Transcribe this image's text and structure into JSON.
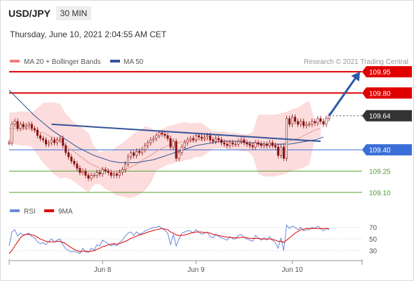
{
  "header": {
    "symbol": "USD/JPY",
    "timeframe": "30 MIN",
    "datetime": "Thursday, June 10, 2021 2:04:55 AM CET"
  },
  "legend": {
    "ma20": "MA 20 + Bollinger Bands",
    "ma50": "MA 50",
    "credit": "Research © 2021 Trading Central",
    "rsi": "RSI",
    "rsi_ma": "9MA"
  },
  "colors": {
    "candle": "#8b1010",
    "bollinger_fill": "#fbd0d0",
    "ma20": "#e89a9a",
    "ma50": "#33549a",
    "resistance": "#e00000",
    "support": "#3a6fd8",
    "target": "#55a030",
    "trendline": "#33549a",
    "arrow": "#2e5aa8",
    "rsi": "#6c8ad8",
    "rsi_ma": "#e00000"
  },
  "chart_data": [
    {
      "type": "candlestick",
      "title": "USD/JPY 30 MIN",
      "x_ticks": [
        "Jun 8",
        "Jun 9",
        "Jun 10"
      ],
      "ylim": [
        109.05,
        109.98
      ],
      "price_levels": [
        {
          "value": 109.95,
          "label": "109.95",
          "kind": "resistance"
        },
        {
          "value": 109.8,
          "label": "109.80",
          "kind": "resistance"
        },
        {
          "value": 109.64,
          "label": "109.64",
          "kind": "last"
        },
        {
          "value": 109.4,
          "label": "109.40",
          "kind": "support"
        },
        {
          "value": 109.25,
          "label": "109.25",
          "kind": "target"
        },
        {
          "value": 109.1,
          "label": "109.10",
          "kind": "target"
        }
      ],
      "close": [
        109.45,
        109.58,
        109.6,
        109.55,
        109.58,
        109.56,
        109.57,
        109.58,
        109.55,
        109.54,
        109.5,
        109.48,
        109.47,
        109.44,
        109.45,
        109.47,
        109.45,
        109.47,
        109.48,
        109.43,
        109.38,
        109.35,
        109.32,
        109.3,
        109.27,
        109.24,
        109.25,
        109.22,
        109.2,
        109.22,
        109.22,
        109.24,
        109.23,
        109.26,
        109.25,
        109.24,
        109.22,
        109.23,
        109.22,
        109.24,
        109.26,
        109.3,
        109.35,
        109.38,
        109.36,
        109.39,
        109.38,
        109.4,
        109.43,
        109.45,
        109.47,
        109.48,
        109.5,
        109.52,
        109.51,
        109.5,
        109.48,
        109.42,
        109.46,
        109.34,
        109.38,
        109.42,
        109.45,
        109.47,
        109.48,
        109.47,
        109.5,
        109.49,
        109.48,
        109.49,
        109.5,
        109.47,
        109.46,
        109.48,
        109.47,
        109.45,
        109.44,
        109.43,
        109.45,
        109.44,
        109.44,
        109.46,
        109.47,
        109.45,
        109.44,
        109.43,
        109.42,
        109.45,
        109.44,
        109.43,
        109.44,
        109.43,
        109.45,
        109.43,
        109.42,
        109.36,
        109.42,
        109.34,
        109.62,
        109.58,
        109.63,
        109.6,
        109.58,
        109.6,
        109.57,
        109.58,
        109.58,
        109.6,
        109.59,
        109.62,
        109.6,
        109.58,
        109.62,
        109.64
      ],
      "ma20": [
        109.55,
        109.55,
        109.55,
        109.55,
        109.54,
        109.53,
        109.52,
        109.5,
        109.48,
        109.46,
        109.43,
        109.4,
        109.37,
        109.34,
        109.31,
        109.29,
        109.27,
        109.26,
        109.25,
        109.25,
        109.26,
        109.27,
        109.29,
        109.31,
        109.34,
        109.36,
        109.39,
        109.41,
        109.43,
        109.44,
        109.45,
        109.46,
        109.46,
        109.47,
        109.47,
        109.47,
        109.47,
        109.47,
        109.47,
        109.46,
        109.46,
        109.45,
        109.45,
        109.44,
        109.44,
        109.43,
        109.43,
        109.43,
        109.44,
        109.45,
        109.47,
        109.48,
        109.5,
        109.52,
        109.54,
        109.55
      ],
      "ma20_index_step": 2,
      "ma50": [
        109.82,
        109.76,
        109.7,
        109.64,
        109.59,
        109.54,
        109.5,
        109.46,
        109.42,
        109.39,
        109.36,
        109.34,
        109.32,
        109.31,
        109.31,
        109.31,
        109.32,
        109.33,
        109.35,
        109.37,
        109.39,
        109.41,
        109.43,
        109.44,
        109.45,
        109.46,
        109.46,
        109.46,
        109.45,
        109.45,
        109.44,
        109.44,
        109.44,
        109.44,
        109.45,
        109.46,
        109.47,
        109.49
      ],
      "ma50_index_step": 3,
      "trendline": {
        "from": {
          "index": 15,
          "value": 109.58
        },
        "to": {
          "index": 110,
          "value": 109.46
        }
      },
      "forecast_arrow": {
        "from": {
          "index": 113,
          "value": 109.64
        },
        "to": {
          "value": 109.95
        }
      }
    },
    {
      "type": "line",
      "title": "RSI",
      "ylim": [
        20,
        78
      ],
      "y_ticks": [
        70,
        50,
        30
      ],
      "series": [
        {
          "name": "RSI",
          "values": [
            38,
            62,
            66,
            55,
            60,
            57,
            58,
            60,
            54,
            52,
            45,
            42,
            44,
            40,
            46,
            50,
            45,
            48,
            50,
            40,
            33,
            30,
            28,
            29,
            27,
            25,
            34,
            28,
            27,
            34,
            31,
            40,
            38,
            48,
            45,
            42,
            38,
            41,
            38,
            44,
            48,
            55,
            60,
            62,
            56,
            62,
            58,
            60,
            64,
            66,
            68,
            70,
            70,
            72,
            68,
            65,
            60,
            40,
            58,
            38,
            50,
            60,
            62,
            64,
            64,
            60,
            66,
            62,
            58,
            60,
            62,
            54,
            52,
            58,
            54,
            52,
            50,
            48,
            54,
            50,
            50,
            56,
            58,
            52,
            50,
            48,
            46,
            56,
            52,
            48,
            52,
            48,
            54,
            48,
            44,
            34,
            52,
            30,
            74,
            68,
            72,
            70,
            66,
            70,
            64,
            66,
            66,
            70,
            68,
            72,
            68,
            64,
            68,
            66
          ]
        },
        {
          "name": "9MA",
          "values": [
            25,
            30,
            38,
            45,
            52,
            56,
            58,
            58,
            57,
            56,
            53,
            50,
            48,
            46,
            45,
            45,
            45,
            46,
            46,
            44,
            42,
            38,
            35,
            32,
            30,
            28,
            29,
            29,
            28,
            29,
            30,
            32,
            34,
            37,
            38,
            40,
            41,
            42,
            41,
            42,
            44,
            46,
            48,
            51,
            53,
            55,
            57,
            58,
            60,
            62,
            63,
            65,
            66,
            67,
            68,
            67,
            66,
            62,
            60,
            57,
            56,
            56,
            57,
            58,
            60,
            61,
            62,
            62,
            62,
            61,
            61,
            60,
            58,
            57,
            56,
            55,
            54,
            53,
            53,
            52,
            52,
            52,
            53,
            53,
            52,
            51,
            51,
            51,
            51,
            50,
            50,
            50,
            50,
            49,
            48,
            46,
            46,
            44,
            48,
            52,
            56,
            60,
            63,
            66,
            67,
            68,
            68,
            68,
            68,
            68,
            68,
            68,
            68,
            68
          ]
        }
      ]
    }
  ]
}
